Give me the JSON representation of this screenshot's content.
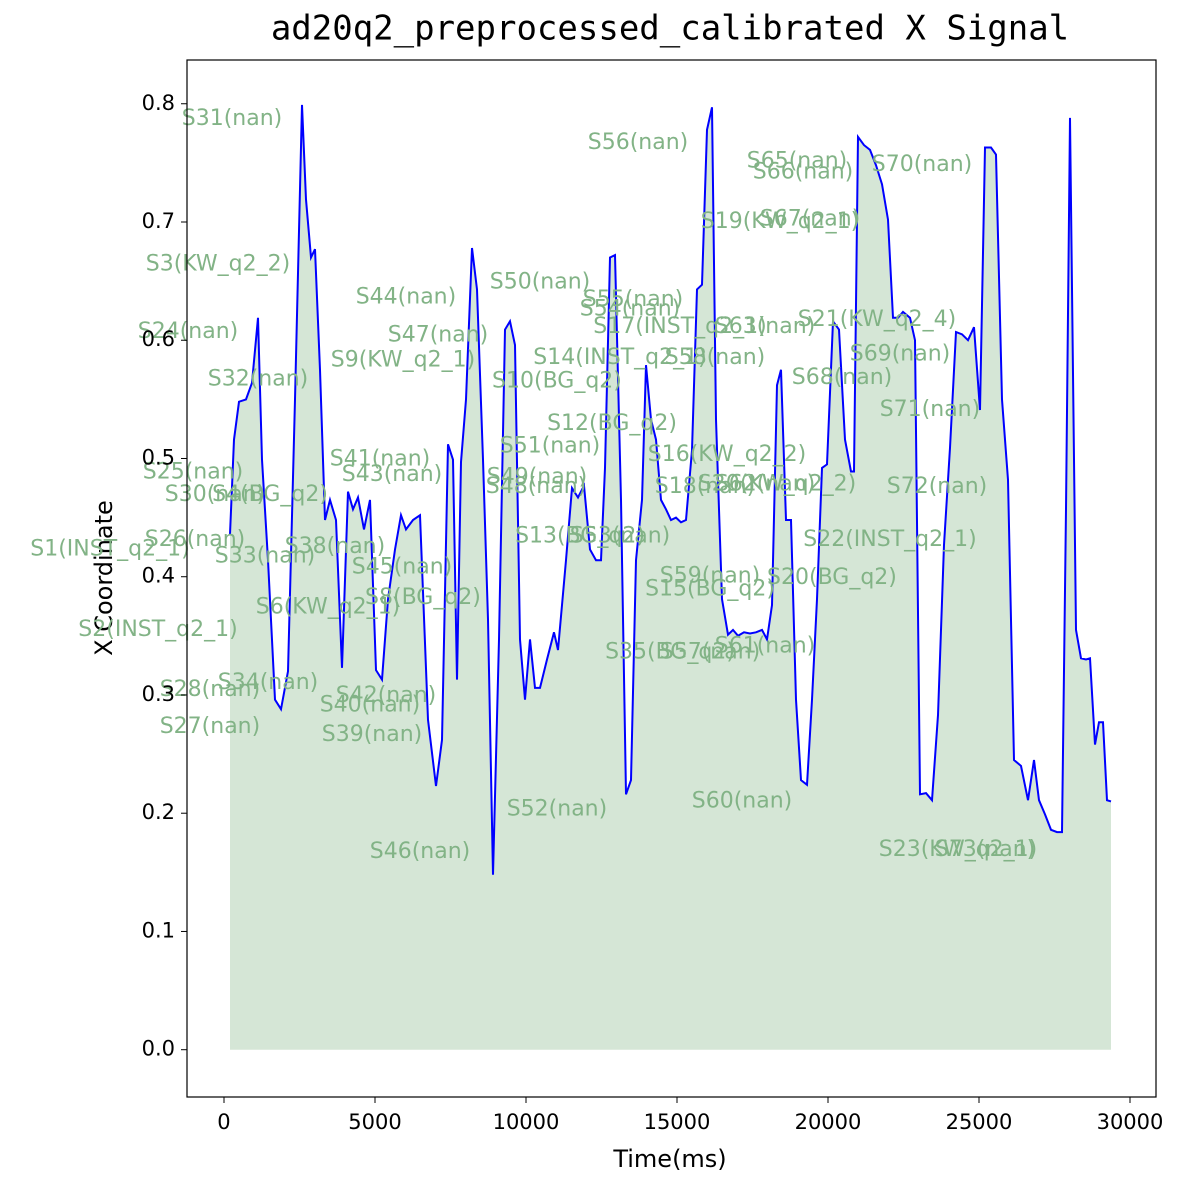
{
  "chart_data": {
    "type": "area-line",
    "title": "ad20q2_preprocessed_calibrated X Signal",
    "x_label": "Time(ms)",
    "y_label": "X Coordinate",
    "line_color": "#0000ff",
    "fill_color": "#d5e6d6",
    "annotation_color": "#82b386",
    "xlim": [
      -1225,
      30861
    ],
    "ylim": [
      -0.04,
      0.837
    ],
    "xticks": [
      0,
      5000,
      10000,
      15000,
      20000,
      25000,
      30000
    ],
    "yticks": [
      {
        "value": 0,
        "label": "0.0"
      },
      0.1,
      0.2,
      0.3,
      0.4,
      0.5,
      0.6,
      0.7,
      0.8
    ],
    "x": [
      199,
      331,
      497,
      728,
      927,
      1126,
      1258,
      1457,
      1689,
      1887,
      2119,
      2351,
      2583,
      2715,
      2881,
      3013,
      3179,
      3344,
      3510,
      3709,
      3907,
      4106,
      4272,
      4437,
      4636,
      4834,
      5033,
      5232,
      5430,
      5662,
      5861,
      6026,
      6258,
      6490,
      6755,
      7020,
      7219,
      7417,
      7583,
      7715,
      7848,
      8013,
      8212,
      8377,
      8576,
      8742,
      8907,
      9106,
      9305,
      9470,
      9636,
      9801,
      9967,
      10132,
      10298,
      10464,
      10695,
      10927,
      11060,
      11325,
      11523,
      11722,
      11921,
      12119,
      12318,
      12483,
      12616,
      12781,
      12947,
      13146,
      13311,
      13477,
      13642,
      13841,
      13974,
      14139,
      14305,
      14470,
      14636,
      14801,
      14967,
      15132,
      15298,
      15497,
      15662,
      15828,
      15993,
      16159,
      16291,
      16490,
      16689,
      16854,
      17020,
      17219,
      17417,
      17616,
      17815,
      17980,
      18146,
      18311,
      18444,
      18609,
      18775,
      18940,
      19106,
      19305,
      19470,
      19636,
      19801,
      19967,
      20166,
      20364,
      20563,
      20762,
      20861,
      20993,
      21192,
      21391,
      21589,
      21788,
      21987,
      22152,
      22318,
      22483,
      22715,
      22881,
      23046,
      23245,
      23444,
      23642,
      23841,
      24040,
      24238,
      24437,
      24636,
      24834,
      25033,
      25199,
      25397,
      25563,
      25762,
      25960,
      26159,
      26391,
      26623,
      26821,
      26987,
      27185,
      27384,
      27583,
      27748,
      27881,
      28013,
      28212,
      28377,
      28543,
      28675,
      28841,
      28974,
      29106,
      29238,
      29371
    ],
    "values": [
      0.436,
      0.516,
      0.548,
      0.55,
      0.564,
      0.619,
      0.499,
      0.414,
      0.296,
      0.288,
      0.32,
      0.55,
      0.799,
      0.719,
      0.67,
      0.677,
      0.575,
      0.448,
      0.465,
      0.448,
      0.323,
      0.472,
      0.457,
      0.467,
      0.44,
      0.465,
      0.321,
      0.313,
      0.381,
      0.423,
      0.452,
      0.44,
      0.448,
      0.452,
      0.279,
      0.223,
      0.262,
      0.512,
      0.499,
      0.313,
      0.497,
      0.55,
      0.678,
      0.643,
      0.499,
      0.364,
      0.148,
      0.347,
      0.609,
      0.616,
      0.596,
      0.347,
      0.296,
      0.347,
      0.306,
      0.306,
      0.33,
      0.353,
      0.338,
      0.414,
      0.475,
      0.467,
      0.477,
      0.423,
      0.414,
      0.414,
      0.492,
      0.67,
      0.672,
      0.465,
      0.216,
      0.228,
      0.414,
      0.465,
      0.579,
      0.533,
      0.516,
      0.465,
      0.457,
      0.448,
      0.45,
      0.446,
      0.448,
      0.507,
      0.643,
      0.647,
      0.778,
      0.797,
      0.533,
      0.381,
      0.351,
      0.355,
      0.35,
      0.353,
      0.352,
      0.353,
      0.355,
      0.347,
      0.376,
      0.562,
      0.575,
      0.448,
      0.448,
      0.296,
      0.228,
      0.224,
      0.296,
      0.381,
      0.492,
      0.495,
      0.616,
      0.609,
      0.516,
      0.489,
      0.489,
      0.772,
      0.765,
      0.761,
      0.748,
      0.732,
      0.702,
      0.619,
      0.619,
      0.624,
      0.619,
      0.6,
      0.216,
      0.217,
      0.211,
      0.283,
      0.427,
      0.509,
      0.607,
      0.605,
      0.6,
      0.611,
      0.541,
      0.763,
      0.763,
      0.757,
      0.55,
      0.482,
      0.245,
      0.24,
      0.211,
      0.245,
      0.211,
      0.199,
      0.186,
      0.184,
      0.184,
      0.457,
      0.788,
      0.355,
      0.331,
      0.33,
      0.331,
      0.258,
      0.277,
      0.277,
      0.211,
      0.21
    ],
    "annotations": [
      {
        "text": "S31(nan)",
        "x": 265,
        "y": 0.787
      },
      {
        "text": "S3(KW_q2_2)",
        "x": -199,
        "y": 0.664
      },
      {
        "text": "S24(nan)",
        "x": -1192,
        "y": 0.607
      },
      {
        "text": "S32(nan)",
        "x": 1126,
        "y": 0.567
      },
      {
        "text": "S25(nan)",
        "x": -1026,
        "y": 0.488
      },
      {
        "text": "S30(nan)",
        "x": -298,
        "y": 0.469
      },
      {
        "text": "S4(BG_q2)",
        "x": 1523,
        "y": 0.469
      },
      {
        "text": "S26(nan)",
        "x": -960,
        "y": 0.431
      },
      {
        "text": "S1(INST_q2_1)",
        "x": -3775,
        "y": 0.423
      },
      {
        "text": "S33(nan)",
        "x": 1358,
        "y": 0.417
      },
      {
        "text": "S38(nan)",
        "x": 3675,
        "y": 0.425
      },
      {
        "text": "S2(INST_q2_1)",
        "x": -2185,
        "y": 0.355
      },
      {
        "text": "S6(KW_q2_1)",
        "x": 3444,
        "y": 0.374
      },
      {
        "text": "S8(BG_q2)",
        "x": 6589,
        "y": 0.382
      },
      {
        "text": "S45(nan)",
        "x": 5894,
        "y": 0.408
      },
      {
        "text": "S41(nan)",
        "x": 5166,
        "y": 0.499
      },
      {
        "text": "S43(nan)",
        "x": 5563,
        "y": 0.486
      },
      {
        "text": "S44(nan)",
        "x": 6026,
        "y": 0.636
      },
      {
        "text": "S47(nan)",
        "x": 7086,
        "y": 0.604
      },
      {
        "text": "S9(KW_q2_1)",
        "x": 5927,
        "y": 0.583
      },
      {
        "text": "S50(nan)",
        "x": 10464,
        "y": 0.649
      },
      {
        "text": "S10(BG_q2)",
        "x": 11026,
        "y": 0.565
      },
      {
        "text": "S51(nan)",
        "x": 10795,
        "y": 0.51
      },
      {
        "text": "S49(nan)",
        "x": 10364,
        "y": 0.484
      },
      {
        "text": "S48(nan)",
        "x": 10331,
        "y": 0.476
      },
      {
        "text": "S34(nan)",
        "x": 1457,
        "y": 0.31
      },
      {
        "text": "S28(nan)",
        "x": -464,
        "y": 0.304
      },
      {
        "text": "S27(nan)",
        "x": -464,
        "y": 0.273
      },
      {
        "text": "S42(nan)",
        "x": 5364,
        "y": 0.299
      },
      {
        "text": "S40(nan)",
        "x": 4834,
        "y": 0.291
      },
      {
        "text": "S39(nan)",
        "x": 4901,
        "y": 0.266
      },
      {
        "text": "S46(nan)",
        "x": 6490,
        "y": 0.167
      },
      {
        "text": "S52(nan)",
        "x": 11026,
        "y": 0.203
      },
      {
        "text": "S56(nan)",
        "x": 13709,
        "y": 0.767
      },
      {
        "text": "S55(nan)",
        "x": 13543,
        "y": 0.634
      },
      {
        "text": "S54(nan)",
        "x": 13444,
        "y": 0.626
      },
      {
        "text": "S17(INST_q2_1)",
        "x": 15099,
        "y": 0.611
      },
      {
        "text": "S14(INST_q2_1)",
        "x": 13113,
        "y": 0.585
      },
      {
        "text": "S58(nan)",
        "x": 16258,
        "y": 0.585
      },
      {
        "text": "S12(BG_q2)",
        "x": 12848,
        "y": 0.529
      },
      {
        "text": "S16(KW_q2_2)",
        "x": 16656,
        "y": 0.503
      },
      {
        "text": "S13(BG_q2)",
        "x": 11788,
        "y": 0.434
      },
      {
        "text": "S53(nan)",
        "x": 13113,
        "y": 0.434
      },
      {
        "text": "S15(BG_q2)",
        "x": 16093,
        "y": 0.389
      },
      {
        "text": "S59(nan)",
        "x": 16093,
        "y": 0.4
      },
      {
        "text": "S18(nan)",
        "x": 15927,
        "y": 0.476
      },
      {
        "text": "S35(BG_q2)",
        "x": 14768,
        "y": 0.336
      },
      {
        "text": "S57(nan)",
        "x": 16093,
        "y": 0.336
      },
      {
        "text": "S61(nan)",
        "x": 17914,
        "y": 0.341
      },
      {
        "text": "S60(nan)",
        "x": 17152,
        "y": 0.21
      },
      {
        "text": "S19(KW_q2_1)",
        "x": 18411,
        "y": 0.7
      },
      {
        "text": "S67(nan)",
        "x": 19404,
        "y": 0.702
      },
      {
        "text": "S65(nan)",
        "x": 18974,
        "y": 0.751
      },
      {
        "text": "S66(nan)",
        "x": 19172,
        "y": 0.742
      },
      {
        "text": "S70(nan)",
        "x": 23113,
        "y": 0.748
      },
      {
        "text": "S63(nan)",
        "x": 17914,
        "y": 0.611
      },
      {
        "text": "S21(KW_q2_4)",
        "x": 21623,
        "y": 0.617
      },
      {
        "text": "S69(nan)",
        "x": 22384,
        "y": 0.588
      },
      {
        "text": "S68(nan)",
        "x": 20464,
        "y": 0.568
      },
      {
        "text": "S71(nan)",
        "x": 23377,
        "y": 0.541
      },
      {
        "text": "S62(nan)",
        "x": 17914,
        "y": 0.478
      },
      {
        "text": "S20(KW_q2_2)",
        "x": 18311,
        "y": 0.478
      },
      {
        "text": "S72(nan)",
        "x": 23609,
        "y": 0.476
      },
      {
        "text": "S22(INST_q2_1)",
        "x": 22053,
        "y": 0.431
      },
      {
        "text": "S20(BG_q2)",
        "x": 20132,
        "y": 0.399
      },
      {
        "text": "S23(KW_q2_1)",
        "x": 24305,
        "y": 0.169
      },
      {
        "text": "S73(nan)",
        "x": 25199,
        "y": 0.169
      }
    ]
  }
}
